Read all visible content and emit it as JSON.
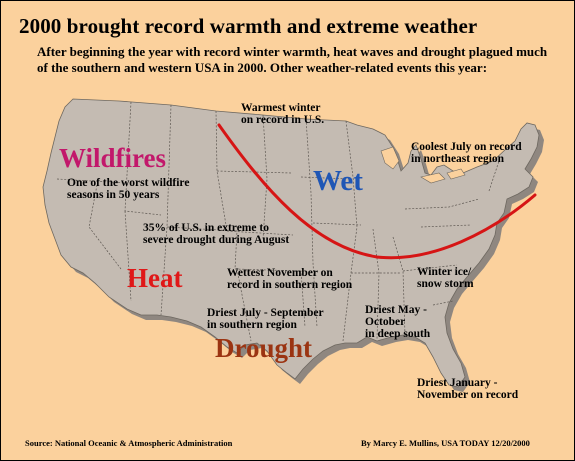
{
  "title": "2000 brought record warmth and extreme weather",
  "subtitle": "After beginning the year with record winter warmth, heat waves and drought plagued much of the southern and western USA in 2000.  Other weather-related events this year:",
  "colors": {
    "background": "#fbd19d",
    "land": "#c4bbb2",
    "shadow": "#8f8780",
    "trend_line": "#d61515",
    "wildfires": "#c2186b",
    "wet": "#1f56b5",
    "heat": "#e01818",
    "drought": "#9b3412"
  },
  "regions": {
    "wildfires": "Wildfires",
    "wet": "Wet",
    "heat": "Heat",
    "drought": "Drought"
  },
  "annotations": {
    "warmest_winter": "Warmest winter\non record in U.S.",
    "coolest_july": "Coolest July on record\nin northeast region",
    "wildfire_season": "One of the worst wildfire\nseasons in 50 years",
    "drought_pct": "35% of U.S. in extreme to\nsevere drought during August",
    "wettest_november": "Wettest November on\nrecord in southern region",
    "winter_ice": "Winter ice/\nsnow storm",
    "driest_july_sept": "Driest July - September\nin southern region",
    "driest_may_oct": "Driest May -\nOctober\nin deep south",
    "driest_jan_nov": "Driest January -\nNovember on record"
  },
  "footer": {
    "source": "Source: National Oceanic & Atmospheric Administration",
    "credit": "By Marcy E. Mullins, USA TODAY  12/20/2000"
  }
}
